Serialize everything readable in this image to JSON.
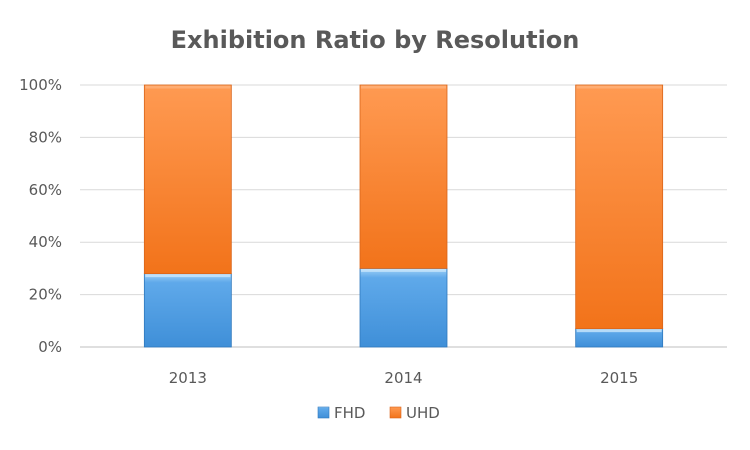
{
  "chart_data": {
    "type": "bar",
    "stacked": true,
    "percent": true,
    "title": "Exhibition Ratio by Resolution",
    "xlabel": "",
    "ylabel": "",
    "categories": [
      "2013",
      "2014",
      "2015"
    ],
    "series": [
      {
        "name": "FHD",
        "values": [
          28,
          30,
          7
        ],
        "color": "#4a9be0"
      },
      {
        "name": "UHD",
        "values": [
          72,
          70,
          93
        ],
        "color": "#f57d23"
      }
    ],
    "ylim": [
      0,
      100
    ],
    "yticks": [
      "0%",
      "20%",
      "40%",
      "60%",
      "80%",
      "100%"
    ],
    "grid": true,
    "legend_position": "bottom"
  }
}
